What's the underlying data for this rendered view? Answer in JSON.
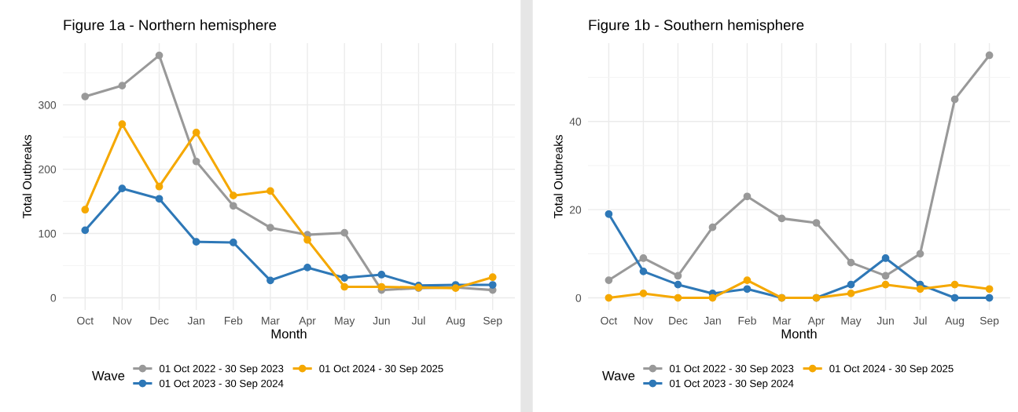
{
  "chart_data": [
    {
      "type": "line",
      "title": "Figure 1a - Northern hemisphere",
      "xlabel": "Month",
      "ylabel": "Total Outbreaks",
      "legend_title": "Wave",
      "categories": [
        "Oct",
        "Nov",
        "Dec",
        "Jan",
        "Feb",
        "Mar",
        "Apr",
        "May",
        "Jun",
        "Jul",
        "Aug",
        "Sep"
      ],
      "series": [
        {
          "name": "01 Oct 2022 - 30 Sep 2023",
          "color": "#999999",
          "values": [
            313,
            330,
            377,
            212,
            143,
            109,
            98,
            101,
            12,
            15,
            16,
            12
          ]
        },
        {
          "name": "01 Oct 2023 - 30 Sep 2024",
          "color": "#2e78b7",
          "values": [
            105,
            170,
            154,
            87,
            86,
            27,
            47,
            31,
            36,
            19,
            20,
            20
          ]
        },
        {
          "name": "01 Oct 2024 - 30 Sep 2025",
          "color": "#f5a800",
          "values": [
            137,
            270,
            173,
            257,
            159,
            166,
            90,
            17,
            17,
            16,
            15,
            32
          ]
        }
      ],
      "ylim": [
        -19,
        396
      ],
      "yticks": [
        0,
        100,
        200,
        300
      ],
      "grid": true,
      "legend": "bottom",
      "marker": "circle",
      "line_style": "solid"
    },
    {
      "type": "line",
      "title": "Figure 1b - Southern hemisphere",
      "xlabel": "Month",
      "ylabel": "Total Outbreaks",
      "legend_title": "Wave",
      "categories": [
        "Oct",
        "Nov",
        "Dec",
        "Jan",
        "Feb",
        "Mar",
        "Apr",
        "May",
        "Jun",
        "Jul",
        "Aug",
        "Sep"
      ],
      "series": [
        {
          "name": "01 Oct 2022 - 30 Sep 2023",
          "color": "#999999",
          "values": [
            4,
            9,
            5,
            16,
            23,
            18,
            17,
            8,
            5,
            10,
            45,
            55
          ]
        },
        {
          "name": "01 Oct 2023 - 30 Sep 2024",
          "color": "#2e78b7",
          "values": [
            19,
            6,
            3,
            1,
            2,
            0,
            0,
            3,
            9,
            3,
            0,
            0
          ]
        },
        {
          "name": "01 Oct 2024 - 30 Sep 2025",
          "color": "#f5a800",
          "values": [
            0,
            1,
            0,
            0,
            4,
            0,
            0,
            1,
            3,
            2,
            3,
            2
          ]
        }
      ],
      "ylim": [
        -2.75,
        57.75
      ],
      "yticks": [
        0,
        20,
        40
      ],
      "grid": true,
      "legend": "bottom",
      "marker": "circle",
      "line_style": "solid"
    }
  ]
}
